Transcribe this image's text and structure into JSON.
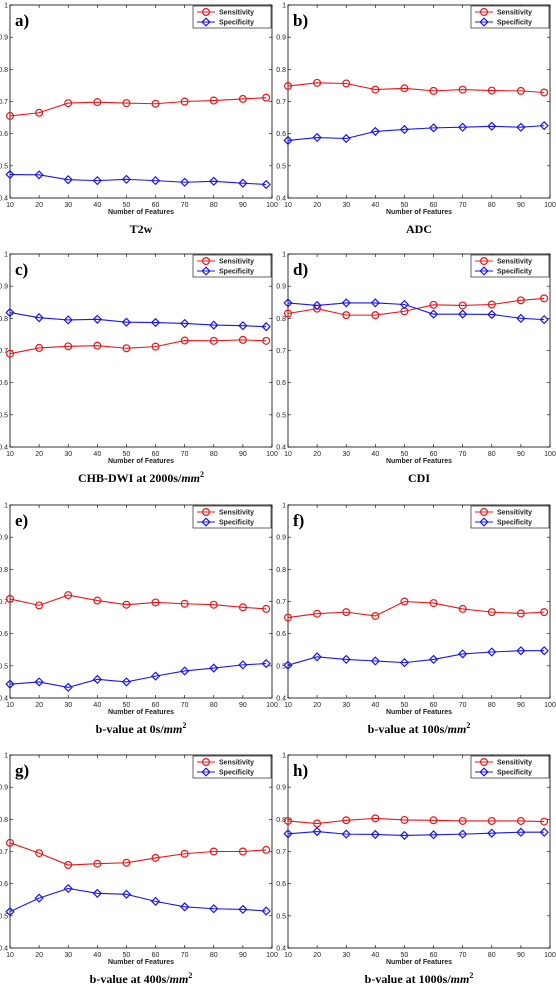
{
  "chart_data": [
    {
      "type": "line",
      "panel_label": "a)",
      "caption": "T2w",
      "xlabel": "Number of Features",
      "x": [
        10,
        20,
        30,
        40,
        50,
        60,
        70,
        80,
        90,
        98
      ],
      "xlim": [
        10,
        100
      ],
      "ylim": [
        0.4,
        1
      ],
      "xticks": [
        10,
        20,
        30,
        40,
        50,
        60,
        70,
        80,
        90,
        100
      ],
      "yticks": [
        "0.4",
        "0.5",
        "0.6",
        "0.7",
        "0.8",
        "0.9",
        "1"
      ],
      "legend_position": "top-right",
      "series": [
        {
          "name": "Sensitivity",
          "color": "#e8171a",
          "marker": "circle",
          "values": [
            0.655,
            0.665,
            0.695,
            0.698,
            0.695,
            0.693,
            0.7,
            0.703,
            0.708,
            0.712
          ]
        },
        {
          "name": "Specificity",
          "color": "#1a17e8",
          "marker": "diamond",
          "values": [
            0.473,
            0.472,
            0.457,
            0.454,
            0.458,
            0.454,
            0.449,
            0.452,
            0.446,
            0.442
          ]
        }
      ]
    },
    {
      "type": "line",
      "panel_label": "b)",
      "caption": "ADC",
      "xlabel": "Number of Features",
      "x": [
        10,
        20,
        30,
        40,
        50,
        60,
        70,
        80,
        90,
        98
      ],
      "xlim": [
        10,
        100
      ],
      "ylim": [
        0.4,
        1
      ],
      "xticks": [
        10,
        20,
        30,
        40,
        50,
        60,
        70,
        80,
        90,
        100
      ],
      "yticks": [
        "0.4",
        "0.5",
        "0.6",
        "0.7",
        "0.8",
        "0.9",
        "1"
      ],
      "legend_position": "top-right",
      "series": [
        {
          "name": "Sensitivity",
          "color": "#e8171a",
          "marker": "circle",
          "values": [
            0.748,
            0.758,
            0.756,
            0.737,
            0.741,
            0.733,
            0.737,
            0.734,
            0.733,
            0.728
          ]
        },
        {
          "name": "Specificity",
          "color": "#1a17e8",
          "marker": "diamond",
          "values": [
            0.579,
            0.588,
            0.585,
            0.607,
            0.613,
            0.618,
            0.62,
            0.623,
            0.62,
            0.625
          ]
        }
      ]
    },
    {
      "type": "line",
      "panel_label": "c)",
      "caption": "CHB-DWI at 2000s/",
      "caption_unit": "mm",
      "caption_exp": "2",
      "xlabel": "Number of Features",
      "x": [
        10,
        20,
        30,
        40,
        50,
        60,
        70,
        80,
        90,
        98
      ],
      "xlim": [
        10,
        100
      ],
      "ylim": [
        0.4,
        1
      ],
      "xticks": [
        10,
        20,
        30,
        40,
        50,
        60,
        70,
        80,
        90,
        100
      ],
      "yticks": [
        "0.4",
        "0.5",
        "0.6",
        "0.7",
        "0.8",
        "0.9",
        "1"
      ],
      "legend_position": "top-right",
      "series": [
        {
          "name": "Sensitivity",
          "color": "#e8171a",
          "marker": "circle",
          "values": [
            0.69,
            0.708,
            0.713,
            0.715,
            0.707,
            0.712,
            0.731,
            0.73,
            0.733,
            0.73
          ]
        },
        {
          "name": "Specificity",
          "color": "#1a17e8",
          "marker": "diamond",
          "values": [
            0.818,
            0.802,
            0.795,
            0.797,
            0.788,
            0.787,
            0.784,
            0.779,
            0.777,
            0.774
          ]
        }
      ]
    },
    {
      "type": "line",
      "panel_label": "d)",
      "caption": "CDI",
      "xlabel": "Number of Features",
      "x": [
        10,
        20,
        30,
        40,
        50,
        60,
        70,
        80,
        90,
        98
      ],
      "xlim": [
        10,
        100
      ],
      "ylim": [
        0.4,
        1
      ],
      "xticks": [
        10,
        20,
        30,
        40,
        50,
        60,
        70,
        80,
        90,
        100
      ],
      "yticks": [
        "0.4",
        "0.5",
        "0.6",
        "0.7",
        "0.8",
        "0.9",
        "1"
      ],
      "legend_position": "top-right",
      "series": [
        {
          "name": "Sensitivity",
          "color": "#e8171a",
          "marker": "circle",
          "values": [
            0.815,
            0.83,
            0.81,
            0.81,
            0.822,
            0.842,
            0.84,
            0.843,
            0.856,
            0.862
          ]
        },
        {
          "name": "Specificity",
          "color": "#1a17e8",
          "marker": "diamond",
          "values": [
            0.848,
            0.84,
            0.848,
            0.848,
            0.843,
            0.813,
            0.813,
            0.812,
            0.8,
            0.796
          ]
        }
      ]
    },
    {
      "type": "line",
      "panel_label": "e)",
      "caption": "b-value at 0s/",
      "caption_unit": "mm",
      "caption_exp": "2",
      "xlabel": "Number of Features",
      "x": [
        10,
        20,
        30,
        40,
        50,
        60,
        70,
        80,
        90,
        98
      ],
      "xlim": [
        10,
        100
      ],
      "ylim": [
        0.4,
        1
      ],
      "xticks": [
        10,
        20,
        30,
        40,
        50,
        60,
        70,
        80,
        90,
        100
      ],
      "yticks": [
        "0.4",
        "0.5",
        "0.6",
        "0.7",
        "0.8",
        "0.9",
        "1"
      ],
      "legend_position": "top-right",
      "series": [
        {
          "name": "Sensitivity",
          "color": "#e8171a",
          "marker": "circle",
          "values": [
            0.708,
            0.688,
            0.72,
            0.703,
            0.69,
            0.697,
            0.693,
            0.69,
            0.682,
            0.677
          ]
        },
        {
          "name": "Specificity",
          "color": "#1a17e8",
          "marker": "diamond",
          "values": [
            0.443,
            0.45,
            0.433,
            0.458,
            0.45,
            0.468,
            0.484,
            0.493,
            0.503,
            0.507
          ]
        }
      ]
    },
    {
      "type": "line",
      "panel_label": "f)",
      "caption": "b-value at 100s/",
      "caption_unit": "mm",
      "caption_exp": "2",
      "xlabel": "Number of Features",
      "x": [
        10,
        20,
        30,
        40,
        50,
        60,
        70,
        80,
        90,
        98
      ],
      "xlim": [
        10,
        100
      ],
      "ylim": [
        0.4,
        1
      ],
      "xticks": [
        10,
        20,
        30,
        40,
        50,
        60,
        70,
        80,
        90,
        100
      ],
      "yticks": [
        "0.4",
        "0.5",
        "0.6",
        "0.7",
        "0.8",
        "0.9",
        "1"
      ],
      "legend_position": "top-right",
      "series": [
        {
          "name": "Sensitivity",
          "color": "#e8171a",
          "marker": "circle",
          "values": [
            0.65,
            0.662,
            0.667,
            0.655,
            0.7,
            0.695,
            0.677,
            0.667,
            0.663,
            0.667
          ]
        },
        {
          "name": "Specificity",
          "color": "#1a17e8",
          "marker": "diamond",
          "values": [
            0.502,
            0.528,
            0.52,
            0.515,
            0.51,
            0.52,
            0.537,
            0.543,
            0.547,
            0.547
          ]
        }
      ]
    },
    {
      "type": "line",
      "panel_label": "g)",
      "caption": "b-value at 400s/",
      "caption_unit": "mm",
      "caption_exp": "2",
      "xlabel": "Number of Features",
      "x": [
        10,
        20,
        30,
        40,
        50,
        60,
        70,
        80,
        90,
        98
      ],
      "xlim": [
        10,
        100
      ],
      "ylim": [
        0.4,
        1
      ],
      "xticks": [
        10,
        20,
        30,
        40,
        50,
        60,
        70,
        80,
        90,
        100
      ],
      "yticks": [
        "0.4",
        "0.5",
        "0.6",
        "0.7",
        "0.8",
        "0.9",
        "1"
      ],
      "legend_position": "top-right",
      "series": [
        {
          "name": "Sensitivity",
          "color": "#e8171a",
          "marker": "circle",
          "values": [
            0.727,
            0.695,
            0.658,
            0.662,
            0.665,
            0.68,
            0.693,
            0.7,
            0.7,
            0.705
          ]
        },
        {
          "name": "Specificity",
          "color": "#1a17e8",
          "marker": "diamond",
          "values": [
            0.513,
            0.555,
            0.585,
            0.57,
            0.567,
            0.545,
            0.528,
            0.522,
            0.52,
            0.515
          ]
        }
      ]
    },
    {
      "type": "line",
      "panel_label": "h)",
      "caption": "b-value at 1000s/",
      "caption_unit": "mm",
      "caption_exp": "2",
      "xlabel": "Number of Features",
      "x": [
        10,
        20,
        30,
        40,
        50,
        60,
        70,
        80,
        90,
        98
      ],
      "xlim": [
        10,
        100
      ],
      "ylim": [
        0.4,
        1
      ],
      "xticks": [
        10,
        20,
        30,
        40,
        50,
        60,
        70,
        80,
        90,
        100
      ],
      "yticks": [
        "0.4",
        "0.5",
        "0.6",
        "0.7",
        "0.8",
        "0.9",
        "1"
      ],
      "legend_position": "top-right",
      "series": [
        {
          "name": "Sensitivity",
          "color": "#e8171a",
          "marker": "circle",
          "values": [
            0.795,
            0.787,
            0.797,
            0.803,
            0.798,
            0.797,
            0.795,
            0.795,
            0.795,
            0.793
          ]
        },
        {
          "name": "Specificity",
          "color": "#1a17e8",
          "marker": "diamond",
          "values": [
            0.755,
            0.762,
            0.754,
            0.753,
            0.75,
            0.752,
            0.754,
            0.757,
            0.76,
            0.76
          ]
        }
      ]
    }
  ]
}
